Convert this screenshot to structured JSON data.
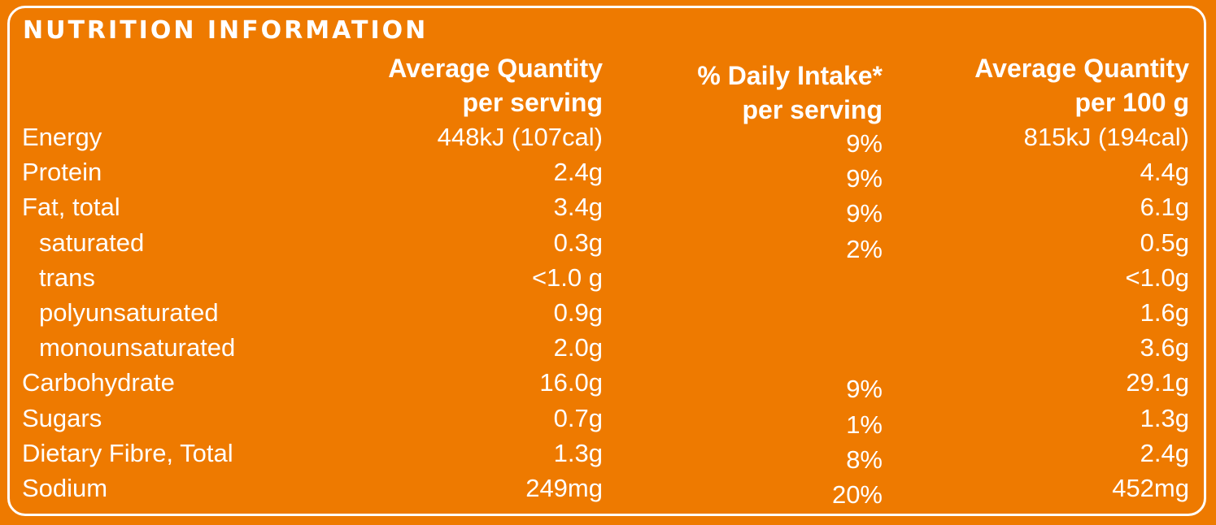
{
  "panel": {
    "title": "NUTRITION INFORMATION",
    "background_color": "#ee7a00",
    "text_color": "#ffffff"
  },
  "headers": {
    "per_serving": [
      "Average Quantity",
      "per serving"
    ],
    "daily_intake": [
      "% Daily Intake*",
      "per serving"
    ],
    "per_100g": [
      "Average Quantity",
      "per 100 g"
    ]
  },
  "rows": [
    {
      "name": "Energy",
      "indent": false,
      "per_serving": "448kJ (107cal)",
      "daily_intake": "9%",
      "per_100g": "815kJ (194cal)"
    },
    {
      "name": "Protein",
      "indent": false,
      "per_serving": "2.4g",
      "daily_intake": "9%",
      "per_100g": "4.4g"
    },
    {
      "name": "Fat, total",
      "indent": false,
      "per_serving": "3.4g",
      "daily_intake": "9%",
      "per_100g": "6.1g"
    },
    {
      "name": "saturated",
      "indent": true,
      "per_serving": "0.3g",
      "daily_intake": "2%",
      "per_100g": "0.5g"
    },
    {
      "name": "trans",
      "indent": true,
      "per_serving": "<1.0 g",
      "daily_intake": "",
      "per_100g": "<1.0g"
    },
    {
      "name": "polyunsaturated",
      "indent": true,
      "per_serving": "0.9g",
      "daily_intake": "",
      "per_100g": "1.6g"
    },
    {
      "name": "monounsaturated",
      "indent": true,
      "per_serving": "2.0g",
      "daily_intake": "",
      "per_100g": "3.6g"
    },
    {
      "name": "Carbohydrate",
      "indent": false,
      "per_serving": "16.0g",
      "daily_intake": "9%",
      "per_100g": "29.1g"
    },
    {
      "name": "Sugars",
      "indent": false,
      "per_serving": "0.7g",
      "daily_intake": "1%",
      "per_100g": "1.3g"
    },
    {
      "name": "Dietary Fibre, Total",
      "indent": false,
      "per_serving": "1.3g",
      "daily_intake": "8%",
      "per_100g": "2.4g"
    },
    {
      "name": "Sodium",
      "indent": false,
      "per_serving": "249mg",
      "daily_intake": "20%",
      "per_100g": "452mg"
    }
  ]
}
